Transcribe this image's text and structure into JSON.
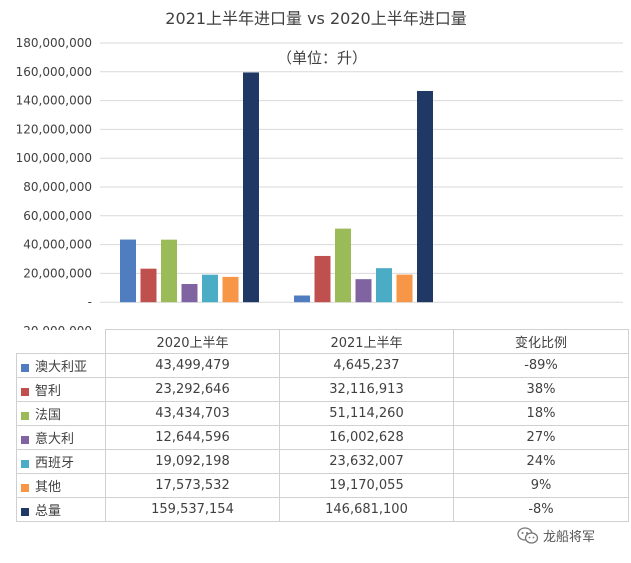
{
  "chart_data": {
    "type": "bar",
    "title": "2021上半年进口量 vs 2020上半年进口量",
    "subtitle": "（单位：升）",
    "categories": [
      "2020上半年",
      "2021上半年"
    ],
    "series": [
      {
        "name": "澳大利亚",
        "color": "#4f7dc0",
        "values": [
          43499479,
          4645237
        ]
      },
      {
        "name": "智利",
        "color": "#c0504d",
        "values": [
          23292646,
          32116913
        ]
      },
      {
        "name": "法国",
        "color": "#9bbb59",
        "values": [
          43434703,
          51114260
        ]
      },
      {
        "name": "意大利",
        "color": "#8064a2",
        "values": [
          12644596,
          16002628
        ]
      },
      {
        "name": "西班牙",
        "color": "#4bacc6",
        "values": [
          19092198,
          23632007
        ]
      },
      {
        "name": "其他",
        "color": "#f79646",
        "values": [
          17573532,
          19170055
        ]
      },
      {
        "name": "总量",
        "color": "#1f3864",
        "values": [
          159537154,
          146681100
        ]
      }
    ],
    "ylim": [
      -20000000,
      180000000
    ],
    "yticks": [
      {
        "value": 180000000,
        "label": "180,000,000"
      },
      {
        "value": 160000000,
        "label": "160,000,000"
      },
      {
        "value": 140000000,
        "label": "140,000,000"
      },
      {
        "value": 120000000,
        "label": "120,000,000"
      },
      {
        "value": 100000000,
        "label": "100,000,000"
      },
      {
        "value": 80000000,
        "label": "80,000,000"
      },
      {
        "value": 60000000,
        "label": "60,000,000"
      },
      {
        "value": 40000000,
        "label": "40,000,000"
      },
      {
        "value": 20000000,
        "label": "20,000,000"
      },
      {
        "value": 0,
        "label": "-"
      },
      {
        "value": -20000000,
        "label": "-20,000,000"
      }
    ],
    "grid": true,
    "table": {
      "headers": [
        "2020上半年",
        "2021上半年",
        "变化比例"
      ],
      "rows": [
        {
          "label": "澳大利亚",
          "v2020": "43,499,479",
          "v2021": "4,645,237",
          "change": "-89%"
        },
        {
          "label": "智利",
          "v2020": "23,292,646",
          "v2021": "32,116,913",
          "change": "38%"
        },
        {
          "label": "法国",
          "v2020": "43,434,703",
          "v2021": "51,114,260",
          "change": "18%"
        },
        {
          "label": "意大利",
          "v2020": "12,644,596",
          "v2021": "16,002,628",
          "change": "27%"
        },
        {
          "label": "西班牙",
          "v2020": "19,092,198",
          "v2021": "23,632,007",
          "change": "24%"
        },
        {
          "label": "其他",
          "v2020": "17,573,532",
          "v2021": "19,170,055",
          "change": "9%"
        },
        {
          "label": "总量",
          "v2020": "159,537,154",
          "v2021": "146,681,100",
          "change": "-8%"
        }
      ]
    }
  },
  "watermark": {
    "text": "龙船将军",
    "icon": "wechat-icon"
  }
}
